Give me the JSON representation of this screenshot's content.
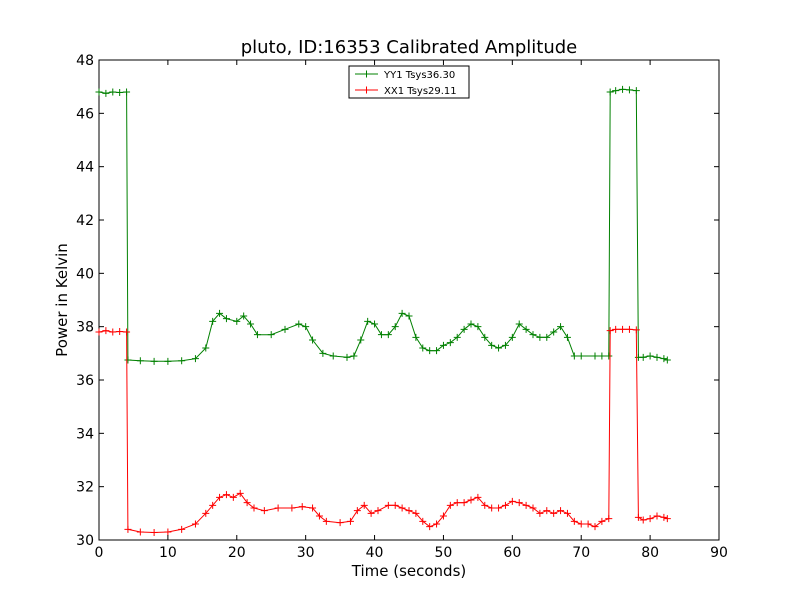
{
  "chart_data": {
    "type": "line",
    "title": "pluto, ID:16353 Calibrated Amplitude",
    "xlabel": "Time (seconds)",
    "ylabel": "Power in Kelvin",
    "xlim": [
      0,
      90
    ],
    "ylim": [
      30,
      48
    ],
    "xticks": [
      0,
      10,
      20,
      30,
      40,
      50,
      60,
      70,
      80,
      90
    ],
    "yticks": [
      30,
      32,
      34,
      36,
      38,
      40,
      42,
      44,
      46,
      48
    ],
    "grid": false,
    "legend_position": "top-center",
    "marker": "+",
    "series": [
      {
        "name": "YY1 Tsys36.30",
        "color": "#008000",
        "points": [
          [
            0.0,
            46.8
          ],
          [
            1.0,
            46.75
          ],
          [
            2.0,
            46.8
          ],
          [
            3.0,
            46.78
          ],
          [
            4.0,
            46.8
          ],
          [
            4.2,
            36.75
          ],
          [
            6.0,
            36.72
          ],
          [
            8.0,
            36.7
          ],
          [
            10.0,
            36.7
          ],
          [
            12.0,
            36.72
          ],
          [
            14.0,
            36.8
          ],
          [
            15.5,
            37.2
          ],
          [
            16.5,
            38.2
          ],
          [
            17.5,
            38.5
          ],
          [
            18.5,
            38.3
          ],
          [
            20.0,
            38.2
          ],
          [
            21.0,
            38.4
          ],
          [
            22.0,
            38.1
          ],
          [
            23.0,
            37.7
          ],
          [
            25.0,
            37.7
          ],
          [
            27.0,
            37.9
          ],
          [
            29.0,
            38.1
          ],
          [
            30.0,
            38.0
          ],
          [
            31.0,
            37.5
          ],
          [
            32.5,
            37.0
          ],
          [
            34.0,
            36.9
          ],
          [
            36.0,
            36.85
          ],
          [
            37.0,
            36.9
          ],
          [
            38.0,
            37.5
          ],
          [
            39.0,
            38.2
          ],
          [
            40.0,
            38.1
          ],
          [
            41.0,
            37.7
          ],
          [
            42.0,
            37.7
          ],
          [
            43.0,
            38.0
          ],
          [
            44.0,
            38.5
          ],
          [
            45.0,
            38.4
          ],
          [
            46.0,
            37.6
          ],
          [
            47.0,
            37.2
          ],
          [
            48.0,
            37.1
          ],
          [
            49.0,
            37.1
          ],
          [
            50.0,
            37.3
          ],
          [
            51.0,
            37.4
          ],
          [
            52.0,
            37.6
          ],
          [
            53.0,
            37.9
          ],
          [
            54.0,
            38.1
          ],
          [
            55.0,
            38.0
          ],
          [
            56.0,
            37.6
          ],
          [
            57.0,
            37.3
          ],
          [
            58.0,
            37.2
          ],
          [
            59.0,
            37.3
          ],
          [
            60.0,
            37.6
          ],
          [
            61.0,
            38.1
          ],
          [
            62.0,
            37.9
          ],
          [
            63.0,
            37.7
          ],
          [
            64.0,
            37.6
          ],
          [
            65.0,
            37.6
          ],
          [
            66.0,
            37.8
          ],
          [
            67.0,
            38.0
          ],
          [
            68.0,
            37.6
          ],
          [
            69.0,
            36.9
          ],
          [
            70.0,
            36.9
          ],
          [
            72.0,
            36.9
          ],
          [
            73.0,
            36.9
          ],
          [
            74.0,
            36.9
          ],
          [
            74.2,
            46.8
          ],
          [
            75.0,
            46.85
          ],
          [
            76.0,
            46.9
          ],
          [
            77.0,
            46.88
          ],
          [
            78.0,
            46.85
          ],
          [
            78.3,
            36.85
          ],
          [
            79.0,
            36.85
          ],
          [
            80.0,
            36.9
          ],
          [
            81.0,
            36.85
          ],
          [
            82.0,
            36.8
          ],
          [
            82.5,
            36.75
          ]
        ]
      },
      {
        "name": "XX1 Tsys29.11",
        "color": "#ff0000",
        "points": [
          [
            0.0,
            37.8
          ],
          [
            1.0,
            37.85
          ],
          [
            2.0,
            37.8
          ],
          [
            3.0,
            37.82
          ],
          [
            4.0,
            37.8
          ],
          [
            4.2,
            30.4
          ],
          [
            6.0,
            30.3
          ],
          [
            8.0,
            30.28
          ],
          [
            10.0,
            30.3
          ],
          [
            12.0,
            30.4
          ],
          [
            14.0,
            30.6
          ],
          [
            15.5,
            31.0
          ],
          [
            16.5,
            31.3
          ],
          [
            17.5,
            31.6
          ],
          [
            18.5,
            31.7
          ],
          [
            19.5,
            31.6
          ],
          [
            20.5,
            31.75
          ],
          [
            21.5,
            31.4
          ],
          [
            22.5,
            31.2
          ],
          [
            24.0,
            31.1
          ],
          [
            26.0,
            31.2
          ],
          [
            28.0,
            31.2
          ],
          [
            29.5,
            31.25
          ],
          [
            31.0,
            31.2
          ],
          [
            32.0,
            30.9
          ],
          [
            33.0,
            30.7
          ],
          [
            35.0,
            30.65
          ],
          [
            36.5,
            30.7
          ],
          [
            37.5,
            31.1
          ],
          [
            38.5,
            31.3
          ],
          [
            39.5,
            31.0
          ],
          [
            40.5,
            31.1
          ],
          [
            42.0,
            31.3
          ],
          [
            43.0,
            31.3
          ],
          [
            44.0,
            31.2
          ],
          [
            45.0,
            31.1
          ],
          [
            46.0,
            31.0
          ],
          [
            47.0,
            30.7
          ],
          [
            48.0,
            30.5
          ],
          [
            49.0,
            30.6
          ],
          [
            50.0,
            30.9
          ],
          [
            51.0,
            31.3
          ],
          [
            52.0,
            31.4
          ],
          [
            53.0,
            31.4
          ],
          [
            54.0,
            31.5
          ],
          [
            55.0,
            31.6
          ],
          [
            56.0,
            31.3
          ],
          [
            57.0,
            31.2
          ],
          [
            58.0,
            31.2
          ],
          [
            59.0,
            31.3
          ],
          [
            60.0,
            31.45
          ],
          [
            61.0,
            31.4
          ],
          [
            62.0,
            31.3
          ],
          [
            63.0,
            31.2
          ],
          [
            64.0,
            31.0
          ],
          [
            65.0,
            31.1
          ],
          [
            66.0,
            31.0
          ],
          [
            67.0,
            31.1
          ],
          [
            68.0,
            31.0
          ],
          [
            69.0,
            30.7
          ],
          [
            70.0,
            30.6
          ],
          [
            71.0,
            30.6
          ],
          [
            72.0,
            30.5
          ],
          [
            73.0,
            30.7
          ],
          [
            74.0,
            30.8
          ],
          [
            74.2,
            37.85
          ],
          [
            75.0,
            37.9
          ],
          [
            76.0,
            37.9
          ],
          [
            77.0,
            37.9
          ],
          [
            78.0,
            37.88
          ],
          [
            78.3,
            30.85
          ],
          [
            79.0,
            30.75
          ],
          [
            80.0,
            30.8
          ],
          [
            81.0,
            30.9
          ],
          [
            82.0,
            30.85
          ],
          [
            82.5,
            30.8
          ]
        ]
      }
    ]
  }
}
